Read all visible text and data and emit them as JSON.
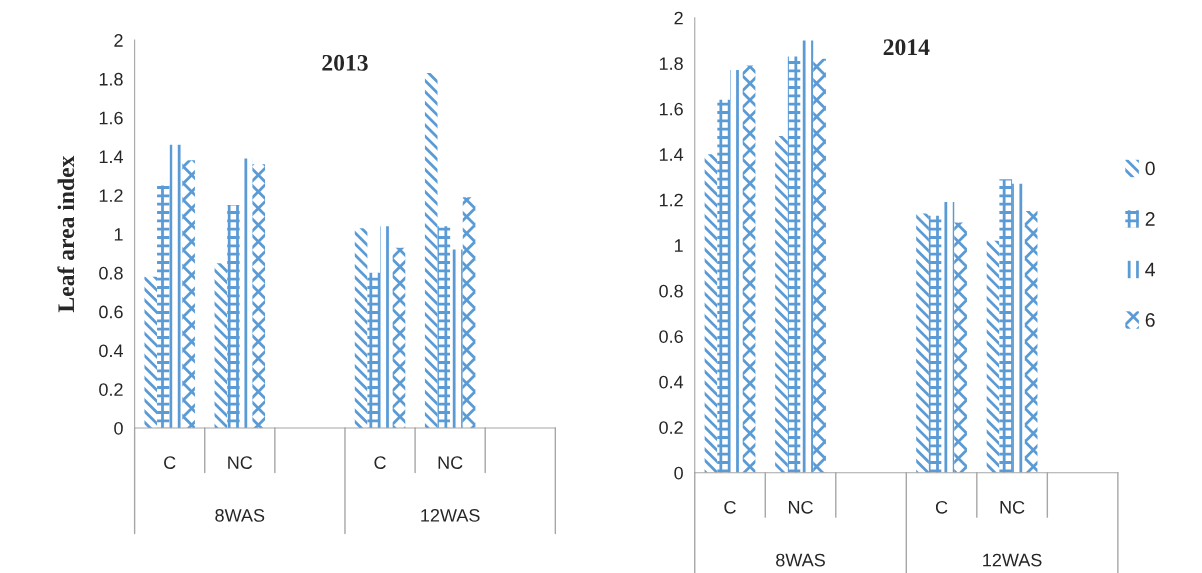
{
  "chart_data": [
    {
      "type": "bar",
      "title": "2013",
      "ylabel": "Leaf area index",
      "categories": [
        "C",
        "NC",
        null,
        "C",
        "NC",
        null
      ],
      "annotations": [
        "8WAS",
        "12WAS"
      ],
      "ylim": [
        0,
        2
      ],
      "yticks": [
        0,
        0.2,
        0.4,
        0.6,
        0.8,
        1,
        1.2,
        1.4,
        1.6,
        1.8,
        2
      ],
      "grid": false,
      "legend": "right",
      "series": [
        {
          "name": "0",
          "color": "#5b9bd5",
          "values": [
            0.78,
            0.85,
            null,
            1.03,
            1.83,
            null
          ]
        },
        {
          "name": "2",
          "color": "#5b9bd5",
          "values": [
            1.25,
            1.15,
            null,
            0.8,
            1.04,
            null
          ]
        },
        {
          "name": "4",
          "color": "#5b9bd5",
          "values": [
            1.46,
            1.39,
            null,
            1.04,
            0.92,
            null
          ]
        },
        {
          "name": "6",
          "color": "#5b9bd5",
          "values": [
            1.38,
            1.36,
            null,
            0.93,
            1.19,
            null
          ]
        }
      ]
    },
    {
      "type": "bar",
      "title": "2014",
      "categories": [
        "C",
        "NC",
        null,
        "C",
        "NC",
        null
      ],
      "annotations": [
        "8WAS",
        "12WAS"
      ],
      "ylim": [
        0,
        2
      ],
      "yticks": [
        0,
        0.2,
        0.4,
        0.6,
        0.8,
        1,
        1.2,
        1.4,
        1.6,
        1.8,
        2
      ],
      "grid": false,
      "legend": "right",
      "series": [
        {
          "name": "0",
          "color": "#5b9bd5",
          "values": [
            1.4,
            1.48,
            null,
            1.14,
            1.02,
            null
          ]
        },
        {
          "name": "2",
          "color": "#5b9bd5",
          "values": [
            1.64,
            1.83,
            null,
            1.13,
            1.29,
            null
          ]
        },
        {
          "name": "4",
          "color": "#5b9bd5",
          "values": [
            1.77,
            1.9,
            null,
            1.19,
            1.27,
            null
          ]
        },
        {
          "name": "6",
          "color": "#5b9bd5",
          "values": [
            1.79,
            1.82,
            null,
            1.1,
            1.15,
            null
          ]
        }
      ]
    }
  ]
}
